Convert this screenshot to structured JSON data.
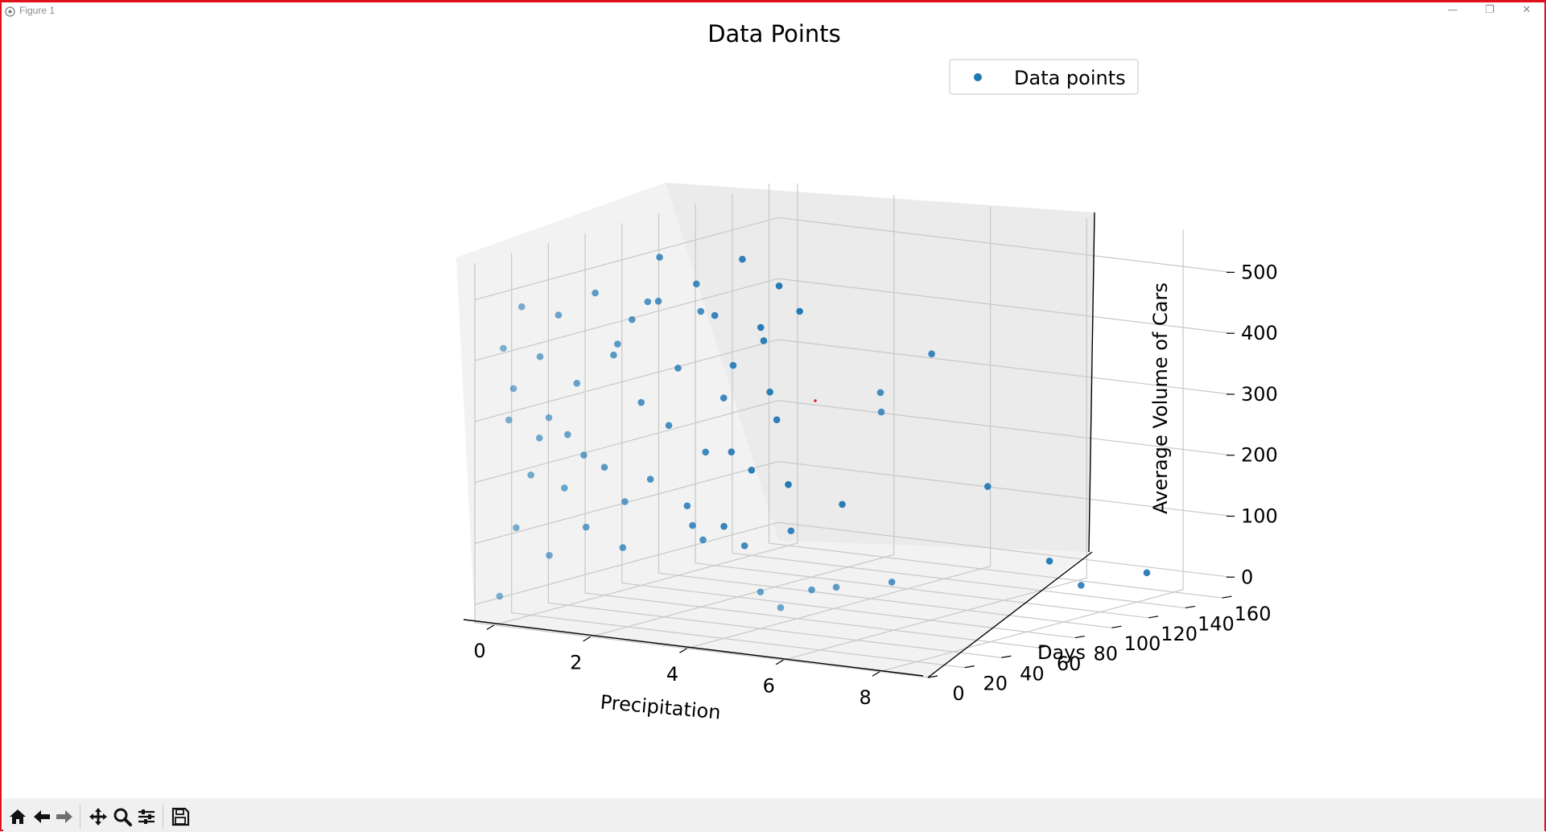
{
  "window": {
    "title": "Figure 1",
    "controls": {
      "minimize": "—",
      "maximize": "❐",
      "close": "✕"
    }
  },
  "toolbar": {
    "buttons": [
      "home-icon",
      "back-arrow-icon",
      "forward-arrow-icon",
      "pan-icon",
      "zoom-icon",
      "configure-subplots-icon",
      "save-icon"
    ]
  },
  "chart_data": {
    "type": "scatter",
    "projection": "3d",
    "title": "Data Points",
    "xlabel": "Precipitation",
    "ylabel": "Days",
    "zlabel": "Average Volume of Cars",
    "xlim": [
      -0.4,
      9.0
    ],
    "ylim": [
      0,
      165
    ],
    "zlim": [
      -30,
      560
    ],
    "xticks": [
      "0",
      "2",
      "4",
      "6",
      "8"
    ],
    "yticks": [
      "0",
      "20",
      "40",
      "60",
      "80",
      "100",
      "120",
      "140",
      "160"
    ],
    "zticks": [
      "0",
      "100",
      "200",
      "300",
      "400",
      "500"
    ],
    "legend": {
      "entries": [
        "Data points"
      ],
      "loc": "upper right"
    },
    "grid": true,
    "color": "#1f77b4",
    "series": [
      {
        "name": "Data points",
        "points": [
          [
            0.0,
            3,
            15
          ],
          [
            0.0,
            5,
            420
          ],
          [
            0.0,
            8,
            300
          ],
          [
            0.0,
            12,
            120
          ],
          [
            0.0,
            15,
            480
          ],
          [
            0.0,
            20,
            200
          ],
          [
            0.0,
            25,
            390
          ],
          [
            0.0,
            30,
            60
          ],
          [
            0.0,
            35,
            450
          ],
          [
            0.0,
            40,
            250
          ],
          [
            0.0,
            45,
            330
          ],
          [
            0.0,
            50,
            90
          ],
          [
            0.0,
            55,
            470
          ],
          [
            0.0,
            60,
            180
          ],
          [
            0.0,
            65,
            360
          ],
          [
            0.0,
            70,
            40
          ],
          [
            0.0,
            75,
            410
          ],
          [
            0.0,
            80,
            270
          ],
          [
            0.0,
            85,
            140
          ],
          [
            0.0,
            90,
            500
          ],
          [
            0.0,
            95,
            220
          ],
          [
            0.0,
            100,
            310
          ],
          [
            0.0,
            105,
            80
          ],
          [
            0.0,
            110,
            440
          ],
          [
            0.0,
            115,
            160
          ],
          [
            0.0,
            120,
            380
          ],
          [
            0.0,
            125,
            30
          ],
          [
            0.0,
            130,
            290
          ],
          [
            0.0,
            135,
            460
          ],
          [
            0.0,
            140,
            110
          ],
          [
            0.0,
            145,
            340
          ],
          [
            0.0,
            150,
            230
          ],
          [
            0.0,
            155,
            400
          ],
          [
            0.0,
            160,
            70
          ],
          [
            0.02,
            10,
            350
          ],
          [
            0.03,
            48,
            210
          ],
          [
            0.05,
            88,
            430
          ],
          [
            0.04,
            128,
            150
          ],
          [
            0.1,
            22,
            260
          ],
          [
            0.12,
            64,
            380
          ],
          [
            0.15,
            104,
            50
          ],
          [
            0.1,
            144,
            320
          ],
          [
            0.2,
            33,
            170
          ],
          [
            0.25,
            77,
            440
          ],
          [
            0.3,
            117,
            250
          ],
          [
            0.35,
            157,
            360
          ],
          [
            0.45,
            18,
            300
          ],
          [
            0.5,
            58,
            130
          ],
          [
            0.55,
            98,
            410
          ],
          [
            0.6,
            138,
            200
          ],
          [
            1.0,
            110,
            20
          ],
          [
            1.2,
            130,
            30
          ],
          [
            1.5,
            150,
            60
          ],
          [
            0.9,
            90,
            45
          ],
          [
            4.0,
            40,
            30
          ],
          [
            4.3,
            60,
            20
          ],
          [
            4.2,
            100,
            310
          ],
          [
            4.5,
            120,
            360
          ],
          [
            4.6,
            90,
            290
          ],
          [
            4.8,
            30,
            20
          ],
          [
            5.0,
            55,
            35
          ],
          [
            4.9,
            140,
            130
          ],
          [
            5.2,
            80,
            25
          ],
          [
            5.8,
            150,
            8
          ],
          [
            7.6,
            120,
            10
          ],
          [
            8.2,
            140,
            20
          ]
        ]
      }
    ]
  }
}
